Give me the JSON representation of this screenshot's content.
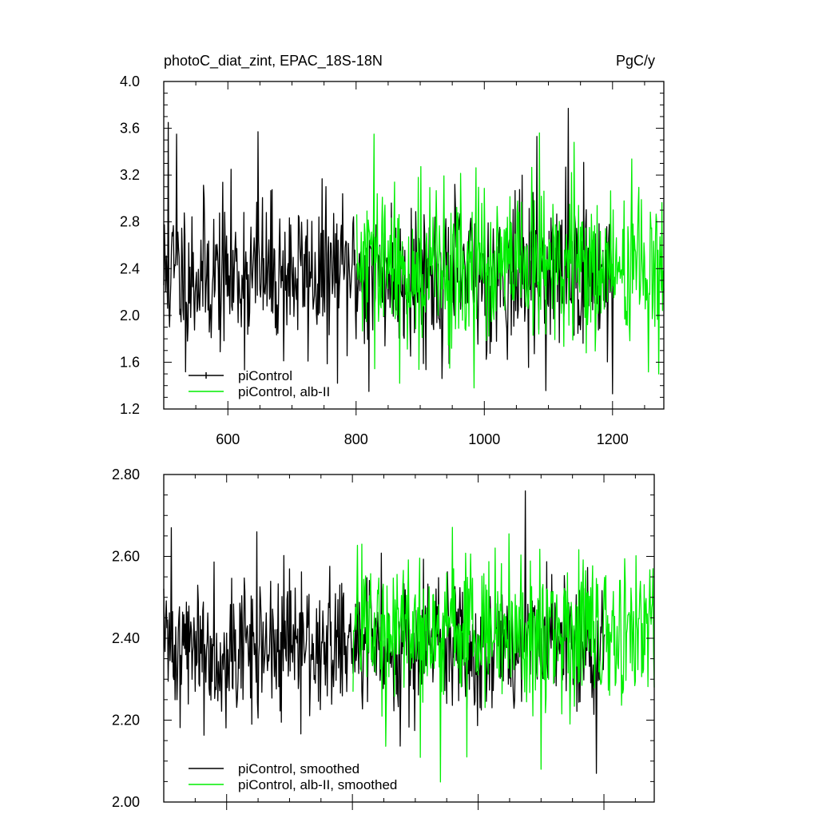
{
  "chart_data": [
    {
      "type": "line",
      "title_left": "photoC_diat_zint, EPAC_18S-18N",
      "title_right": "PgC/y",
      "xlim": [
        500,
        1280
      ],
      "ylim": [
        1.2,
        4.0
      ],
      "x_ticks": [
        600,
        800,
        1000,
        1200
      ],
      "x_tick_labels": [
        "600",
        "800",
        "1000",
        "1200"
      ],
      "y_ticks": [
        1.2,
        1.6,
        2.0,
        2.4,
        2.8,
        3.2,
        3.6,
        4.0
      ],
      "y_tick_labels": [
        "1.2",
        "1.6",
        "2.0",
        "2.4",
        "2.8",
        "3.2",
        "3.6",
        "4.0"
      ],
      "grid": false,
      "legend_position": "bottom-left",
      "series": [
        {
          "name": "piControl",
          "color": "#000000",
          "x_range": [
            500,
            1201
          ],
          "mean": 2.35,
          "std": 0.33,
          "seed": 11,
          "peaks": [
            [
              507,
              3.65
            ],
            [
              520,
              3.55
            ],
            [
              647,
              3.57
            ],
            [
              1131,
              3.77
            ],
            [
              1082,
              3.53
            ],
            [
              820,
              1.35
            ],
            [
              1200,
              1.33
            ]
          ]
        },
        {
          "name": "piControl, alb-II",
          "color": "#00ee00",
          "x_range": [
            801,
            1280
          ],
          "mean": 2.4,
          "std": 0.33,
          "seed": 29,
          "peaks": [
            [
              828,
              3.55
            ],
            [
              1086,
              3.56
            ],
            [
              1140,
              3.48
            ],
            [
              868,
              1.42
            ],
            [
              984,
              1.38
            ],
            [
              1272,
              1.5
            ]
          ]
        }
      ]
    },
    {
      "type": "line",
      "xlim": [
        500,
        1280
      ],
      "ylim": [
        2.0,
        2.8
      ],
      "x_ticks": [
        600,
        800,
        1000,
        1200
      ],
      "y_ticks": [
        2.0,
        2.2,
        2.4,
        2.6,
        2.8
      ],
      "y_tick_labels": [
        "2.00",
        "2.20",
        "2.40",
        "2.60",
        "2.80"
      ],
      "grid": false,
      "legend_position": "bottom-left",
      "series": [
        {
          "name": "piControl, smoothed",
          "color": "#000000",
          "x_range": [
            500,
            1201
          ],
          "mean": 2.38,
          "std": 0.085,
          "seed": 41,
          "peaks": [
            [
              512,
              2.67
            ],
            [
              648,
              2.66
            ],
            [
              1075,
              2.76
            ],
            [
              1188,
              2.07
            ],
            [
              640,
              2.19
            ]
          ]
        },
        {
          "name": "piControl, alb-II, smoothed",
          "color": "#00ee00",
          "x_range": [
            801,
            1280
          ],
          "mean": 2.41,
          "std": 0.09,
          "seed": 57,
          "peaks": [
            [
              1049,
              2.655
            ],
            [
              1100,
              2.08
            ],
            [
              982,
              2.11
            ],
            [
              815,
              2.63
            ],
            [
              1278,
              2.57
            ]
          ]
        }
      ]
    }
  ]
}
